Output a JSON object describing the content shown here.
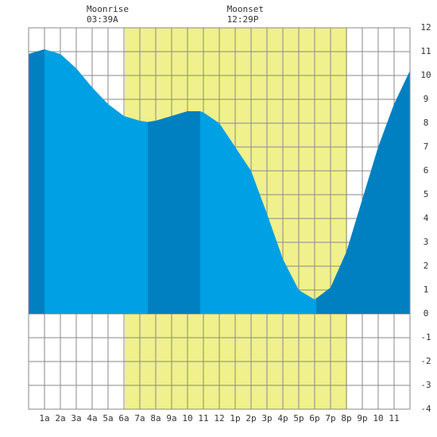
{
  "chart_data": {
    "type": "area",
    "x": [
      0,
      1,
      2,
      3,
      4,
      5,
      6,
      7,
      7.5,
      8,
      9,
      10,
      10.8,
      11,
      12,
      13,
      14,
      15,
      16,
      17,
      18,
      19,
      20,
      21,
      22,
      23,
      24
    ],
    "values": [
      10.9,
      11.1,
      10.9,
      10.3,
      9.5,
      8.8,
      8.3,
      8.1,
      8.05,
      8.1,
      8.3,
      8.5,
      8.5,
      8.45,
      8.0,
      7.0,
      6.0,
      4.2,
      2.3,
      1.0,
      0.6,
      1.1,
      2.6,
      4.8,
      7.0,
      8.8,
      10.2
    ],
    "color": "#00a0e4",
    "dark_color": "#0080c0",
    "dark_segments": [
      [
        0,
        1
      ],
      [
        7.5,
        10.8
      ],
      [
        18.1,
        24
      ]
    ],
    "daylight": [
      6.05,
      20.05
    ],
    "daylight_color": "#f0f08c",
    "moon_events": [
      {
        "name": "Moonrise",
        "time": "03:39A",
        "x": 3.65
      },
      {
        "name": "Moonset",
        "time": "12:29P",
        "x": 12.48
      }
    ],
    "xlim": [
      0,
      24
    ],
    "xticks": [
      {
        "value": 1,
        "label": "1a"
      },
      {
        "value": 2,
        "label": "2a"
      },
      {
        "value": 3,
        "label": "3a"
      },
      {
        "value": 4,
        "label": "4a"
      },
      {
        "value": 5,
        "label": "5a"
      },
      {
        "value": 6,
        "label": "6a"
      },
      {
        "value": 7,
        "label": "7a"
      },
      {
        "value": 8,
        "label": "8a"
      },
      {
        "value": 9,
        "label": "9a"
      },
      {
        "value": 10,
        "label": "10"
      },
      {
        "value": 11,
        "label": "11"
      },
      {
        "value": 12,
        "label": "12"
      },
      {
        "value": 13,
        "label": "1p"
      },
      {
        "value": 14,
        "label": "2p"
      },
      {
        "value": 15,
        "label": "3p"
      },
      {
        "value": 16,
        "label": "4p"
      },
      {
        "value": 17,
        "label": "5p"
      },
      {
        "value": 18,
        "label": "6p"
      },
      {
        "value": 19,
        "label": "7p"
      },
      {
        "value": 20,
        "label": "8p"
      },
      {
        "value": 21,
        "label": "9p"
      },
      {
        "value": 22,
        "label": "10"
      },
      {
        "value": 23,
        "label": "11"
      }
    ],
    "ylim": [
      -4,
      12
    ],
    "yticks": [
      -4,
      -3,
      -2,
      -1,
      0,
      1,
      2,
      3,
      4,
      5,
      6,
      7,
      8,
      9,
      10,
      11,
      12
    ],
    "grid": true
  }
}
